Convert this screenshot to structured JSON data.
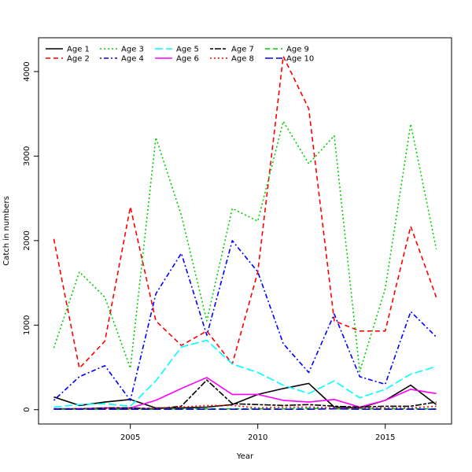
{
  "chart_data": {
    "type": "line",
    "xlabel": "Year",
    "ylabel": "Catch in numbers",
    "xlim": [
      2001.4,
      2017.6
    ],
    "ylim": [
      -170,
      4400
    ],
    "x_ticks": [
      2005,
      2010,
      2015
    ],
    "y_ticks": [
      0,
      1000,
      2000,
      3000,
      4000
    ],
    "grid": false,
    "legend_position": "top-left",
    "x": [
      2002,
      2003,
      2004,
      2005,
      2006,
      2007,
      2008,
      2009,
      2010,
      2011,
      2012,
      2013,
      2014,
      2015,
      2016,
      2017
    ],
    "series": [
      {
        "name": "Age 1",
        "color": "#000000",
        "dash": "solid",
        "values": [
          150,
          50,
          90,
          120,
          20,
          20,
          30,
          60,
          180,
          250,
          310,
          30,
          20,
          110,
          290,
          60
        ]
      },
      {
        "name": "Age 2",
        "color": "#ff0000",
        "dash": "dashed",
        "values": [
          2020,
          490,
          810,
          2400,
          1050,
          760,
          930,
          540,
          1630,
          4180,
          3560,
          1050,
          930,
          930,
          2170,
          1330
        ]
      },
      {
        "name": "Age 3",
        "color": "#00cd00",
        "dash": "dotted",
        "values": [
          730,
          1630,
          1330,
          490,
          3220,
          2300,
          1050,
          2380,
          2230,
          3410,
          2910,
          3240,
          450,
          1430,
          3380,
          1900
        ]
      },
      {
        "name": "Age 4",
        "color": "#0000ff",
        "dash": "dotdash",
        "values": [
          110,
          390,
          520,
          110,
          1370,
          1850,
          880,
          2000,
          1630,
          780,
          440,
          1130,
          390,
          300,
          1160,
          860
        ]
      },
      {
        "name": "Age 5",
        "color": "#00ffff",
        "dash": "longdash",
        "values": [
          30,
          60,
          70,
          40,
          340,
          740,
          820,
          540,
          440,
          290,
          190,
          340,
          140,
          240,
          420,
          510
        ]
      },
      {
        "name": "Age 6",
        "color": "#ff00ff",
        "dash": "solid",
        "values": [
          10,
          10,
          20,
          20,
          110,
          250,
          380,
          180,
          180,
          110,
          90,
          120,
          30,
          110,
          240,
          190
        ]
      },
      {
        "name": "Age 7",
        "color": "#000000",
        "dash": "twodash",
        "values": [
          10,
          10,
          20,
          20,
          10,
          40,
          350,
          70,
          60,
          50,
          60,
          40,
          30,
          40,
          40,
          90
        ]
      },
      {
        "name": "Age 8",
        "color": "#ff0000",
        "dash": "dotted",
        "values": [
          10,
          10,
          10,
          10,
          20,
          30,
          50,
          50,
          20,
          30,
          30,
          20,
          20,
          20,
          20,
          40
        ]
      },
      {
        "name": "Age 9",
        "color": "#00cd00",
        "dash": "dashed",
        "values": [
          5,
          5,
          5,
          5,
          5,
          10,
          10,
          10,
          10,
          10,
          15,
          10,
          10,
          10,
          10,
          10
        ]
      },
      {
        "name": "Age 10",
        "color": "#0000ff",
        "dash": "longdash",
        "values": [
          5,
          5,
          5,
          5,
          5,
          5,
          5,
          5,
          5,
          5,
          5,
          10,
          5,
          5,
          5,
          5
        ]
      }
    ]
  }
}
